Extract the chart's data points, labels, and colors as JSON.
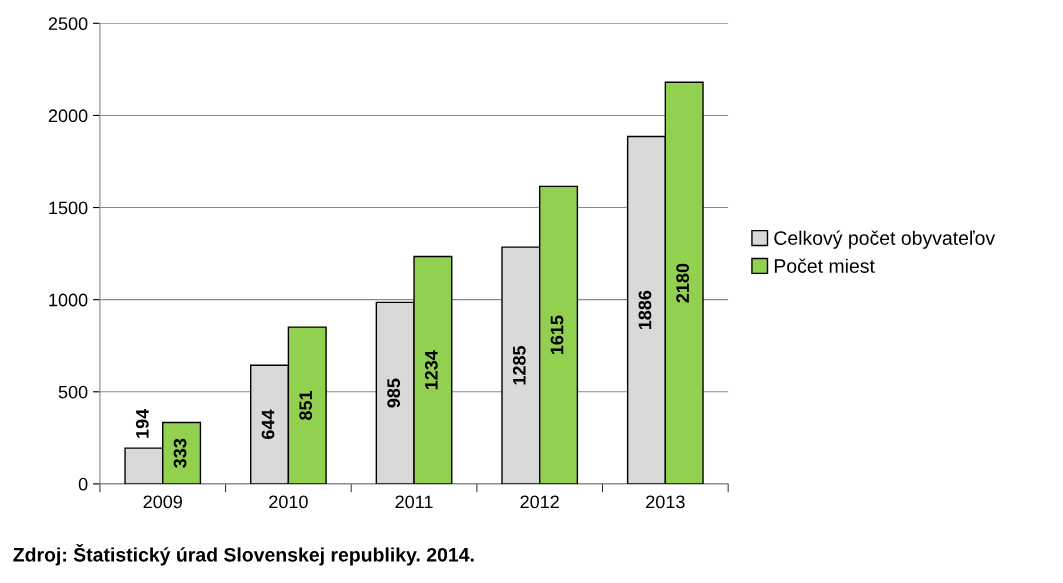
{
  "chart_data": {
    "type": "bar",
    "categories": [
      "2009",
      "2010",
      "2011",
      "2012",
      "2013"
    ],
    "series": [
      {
        "name": "Celkový počet obyvateľov",
        "color": "#d9d9d9",
        "values": [
          194,
          644,
          985,
          1285,
          1886
        ]
      },
      {
        "name": "Počet miest",
        "color": "#92d050",
        "values": [
          333,
          851,
          1234,
          1615,
          2180
        ]
      }
    ],
    "ylim": [
      0,
      2500
    ],
    "yticks": [
      0,
      500,
      1000,
      1500,
      2000,
      2500
    ],
    "grid": "y",
    "legend": "right",
    "data_labels": true,
    "annotations": [
      "Zdroj: Štatistický úrad Slovenskej republiky. 2014."
    ]
  }
}
